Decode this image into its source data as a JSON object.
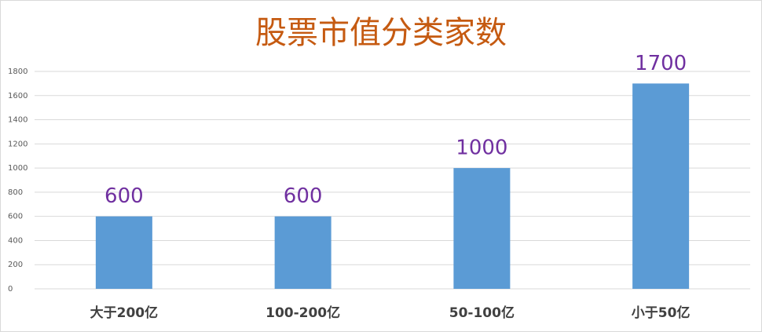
{
  "chart_data": {
    "type": "bar",
    "title": "股票市值分类家数",
    "categories": [
      "大于200亿",
      "100-200亿",
      "50-100亿",
      "小于50亿"
    ],
    "values": [
      600,
      600,
      1000,
      1700
    ],
    "color": "#5b9bd5",
    "label_color": "#7030a0",
    "title_color": "#c55a11",
    "ylim": [
      0,
      1800
    ],
    "yticks": [
      0,
      200,
      400,
      600,
      800,
      1000,
      1200,
      1400,
      1600,
      1800
    ],
    "grid": true
  }
}
